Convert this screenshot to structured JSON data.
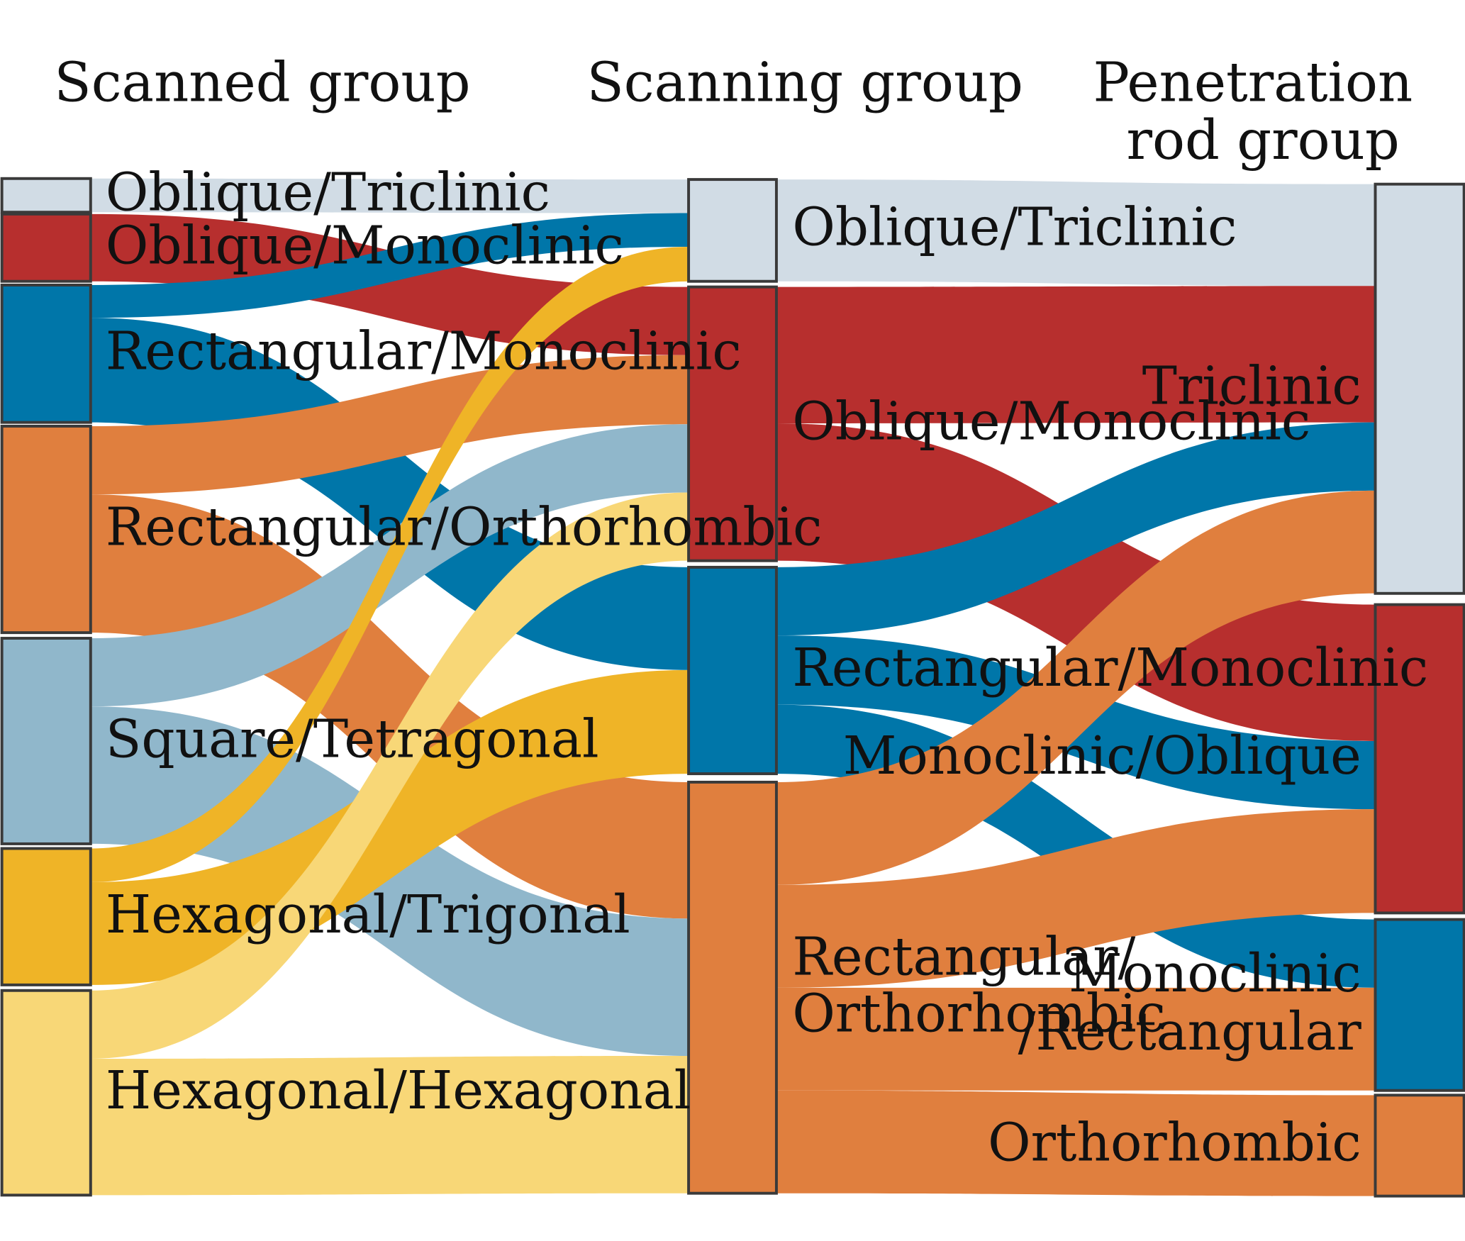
{
  "headers": {
    "col1": "Scanned group",
    "col2": "Scanning group",
    "col3_line1": "Penetration",
    "col3_line2": "rod group"
  },
  "colors": {
    "oblique_triclinic": "#d1dce5",
    "oblique_monoclinic": "#b72f2e",
    "rectangular_monoclinic": "#0076a9",
    "rectangular_orthorhombic": "#e07f3e",
    "square_tetragonal": "#90b7cb",
    "hexagonal_trigonal": "#efb427",
    "hexagonal_hexagonal": "#f8d777"
  },
  "columns": {
    "scanned": [
      {
        "id": "s_ot",
        "label": "Oblique/Triclinic",
        "color": "oblique_triclinic"
      },
      {
        "id": "s_om",
        "label": "Oblique/Monoclinic",
        "color": "oblique_monoclinic"
      },
      {
        "id": "s_rm",
        "label": "Rectangular/Monoclinic",
        "color": "rectangular_monoclinic"
      },
      {
        "id": "s_ro",
        "label": "Rectangular/Orthorhombic",
        "color": "rectangular_orthorhombic"
      },
      {
        "id": "s_st",
        "label": "Square/Tetragonal",
        "color": "square_tetragonal"
      },
      {
        "id": "s_ht",
        "label": "Hexagonal/Trigonal",
        "color": "hexagonal_trigonal"
      },
      {
        "id": "s_hh",
        "label": "Hexagonal/Hexagonal",
        "color": "hexagonal_hexagonal"
      }
    ],
    "scanning": [
      {
        "id": "c_ot",
        "label": "Oblique/Triclinic",
        "color": "oblique_triclinic"
      },
      {
        "id": "c_om",
        "label": "Oblique/Monoclinic",
        "color": "oblique_monoclinic"
      },
      {
        "id": "c_rm",
        "label": "Rectangular/Monoclinic",
        "color": "rectangular_monoclinic"
      },
      {
        "id": "c_ro",
        "label_line1": "Rectangular/",
        "label_line2": "Orthorhombic",
        "color": "rectangular_orthorhombic"
      }
    ],
    "rod": [
      {
        "id": "r_t",
        "label": "Triclinic",
        "color": "oblique_triclinic"
      },
      {
        "id": "r_mo",
        "label": "Monoclinic/Oblique",
        "color": "oblique_monoclinic"
      },
      {
        "id": "r_mr",
        "label_line1": "Monoclinic",
        "label_line2": "/Rectangular",
        "color": "rectangular_monoclinic"
      },
      {
        "id": "r_o",
        "label": "Orthorhombic",
        "color": "rectangular_orthorhombic"
      }
    ]
  },
  "flows": [
    {
      "source": "s_ot",
      "target": "c_ot",
      "value": 1,
      "color": "oblique_triclinic"
    },
    {
      "source": "s_om",
      "target": "c_om",
      "value": 1,
      "color": "oblique_monoclinic"
    },
    {
      "source": "s_rm",
      "target": "c_ot",
      "value": 1,
      "color": "rectangular_monoclinic"
    },
    {
      "source": "s_rm",
      "target": "c_rm",
      "value": 3,
      "color": "rectangular_monoclinic"
    },
    {
      "source": "s_ro",
      "target": "c_om",
      "value": 2,
      "color": "rectangular_orthorhombic"
    },
    {
      "source": "s_ro",
      "target": "c_ro",
      "value": 4,
      "color": "rectangular_orthorhombic"
    },
    {
      "source": "s_st",
      "target": "c_om",
      "value": 2,
      "color": "square_tetragonal"
    },
    {
      "source": "s_st",
      "target": "c_ro",
      "value": 4,
      "color": "square_tetragonal"
    },
    {
      "source": "s_ht",
      "target": "c_ot",
      "value": 1,
      "color": "hexagonal_trigonal"
    },
    {
      "source": "s_ht",
      "target": "c_rm",
      "value": 3,
      "color": "hexagonal_trigonal"
    },
    {
      "source": "s_hh",
      "target": "c_om",
      "value": 2,
      "color": "hexagonal_hexagonal"
    },
    {
      "source": "s_hh",
      "target": "c_ro",
      "value": 4,
      "color": "hexagonal_hexagonal"
    },
    {
      "source": "c_ot",
      "target": "r_t",
      "value": 3,
      "color": "oblique_triclinic"
    },
    {
      "source": "c_om",
      "target": "r_t",
      "value": 4,
      "color": "oblique_monoclinic"
    },
    {
      "source": "c_om",
      "target": "r_mo",
      "value": 4,
      "color": "oblique_monoclinic"
    },
    {
      "source": "c_rm",
      "target": "r_t",
      "value": 2,
      "color": "rectangular_monoclinic"
    },
    {
      "source": "c_rm",
      "target": "r_mo",
      "value": 2,
      "color": "rectangular_monoclinic"
    },
    {
      "source": "c_rm",
      "target": "r_mr",
      "value": 2,
      "color": "rectangular_monoclinic"
    },
    {
      "source": "c_ro",
      "target": "r_t",
      "value": 3,
      "color": "rectangular_orthorhombic"
    },
    {
      "source": "c_ro",
      "target": "r_mo",
      "value": 3,
      "color": "rectangular_orthorhombic"
    },
    {
      "source": "c_ro",
      "target": "r_mr",
      "value": 3,
      "color": "rectangular_orthorhombic"
    },
    {
      "source": "c_ro",
      "target": "r_o",
      "value": 3,
      "color": "rectangular_orthorhombic"
    }
  ]
}
